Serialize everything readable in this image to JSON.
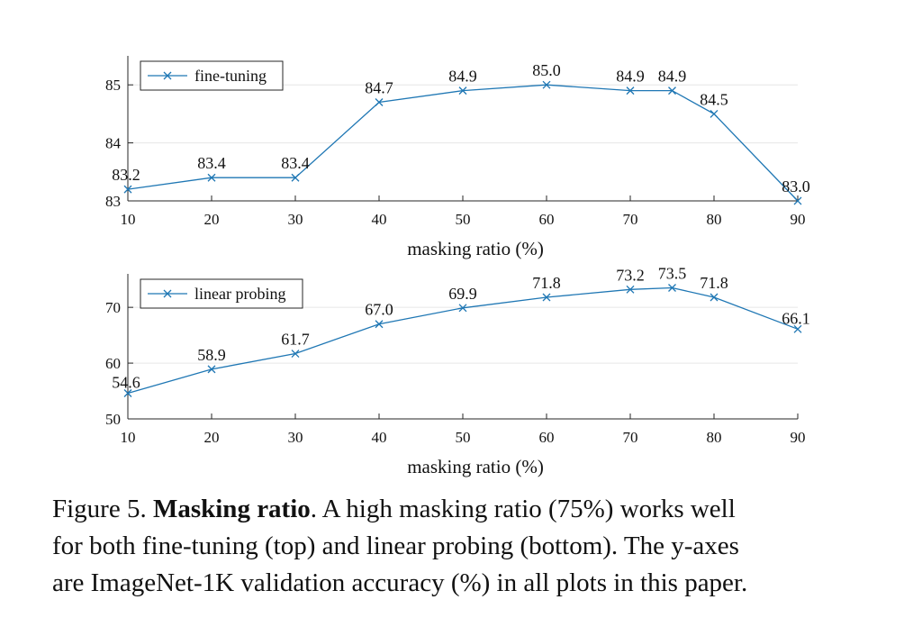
{
  "chart_data": [
    {
      "type": "line",
      "x": [
        10,
        20,
        30,
        40,
        50,
        60,
        70,
        75,
        80,
        90
      ],
      "series": [
        {
          "name": "fine-tuning",
          "values": [
            83.2,
            83.4,
            83.4,
            84.7,
            84.9,
            85.0,
            84.9,
            84.9,
            84.5,
            83.0
          ]
        }
      ],
      "data_labels": [
        "83.2",
        "83.4",
        "83.4",
        "84.7",
        "84.9",
        "85.0",
        "84.9",
        "84.9",
        "84.5",
        "83.0"
      ],
      "xticks": [
        10,
        20,
        30,
        40,
        50,
        60,
        70,
        80,
        90
      ],
      "yticks": [
        83,
        84,
        85
      ],
      "xlim": [
        10,
        90
      ],
      "ylim": [
        83,
        85.5
      ],
      "xlabel": "masking ratio (%)",
      "ylabel": "",
      "grid": "horizontal",
      "legend": "top-left",
      "color": "#1f77b4"
    },
    {
      "type": "line",
      "x": [
        10,
        20,
        30,
        40,
        50,
        60,
        70,
        75,
        80,
        90
      ],
      "series": [
        {
          "name": "linear probing",
          "values": [
            54.6,
            58.9,
            61.7,
            67.0,
            69.9,
            71.8,
            73.2,
            73.5,
            71.8,
            66.1
          ]
        }
      ],
      "data_labels": [
        "54.6",
        "58.9",
        "61.7",
        "67.0",
        "69.9",
        "71.8",
        "73.2",
        "73.5",
        "71.8",
        "66.1"
      ],
      "xticks": [
        10,
        20,
        30,
        40,
        50,
        60,
        70,
        80,
        90
      ],
      "yticks": [
        50,
        60,
        70
      ],
      "xlim": [
        10,
        90
      ],
      "ylim": [
        50,
        76
      ],
      "xlabel": "masking ratio (%)",
      "ylabel": "",
      "grid": "horizontal",
      "legend": "top-left",
      "color": "#1f77b4"
    }
  ],
  "caption": {
    "prefix": "Figure 5. ",
    "title": "Masking ratio",
    "line1_rest": ". A high masking ratio (75%) works well",
    "line2": "for both fine-tuning (top) and linear probing (bottom). The y-axes",
    "line3": "are ImageNet-1K validation accuracy (%) in all plots in this paper."
  }
}
